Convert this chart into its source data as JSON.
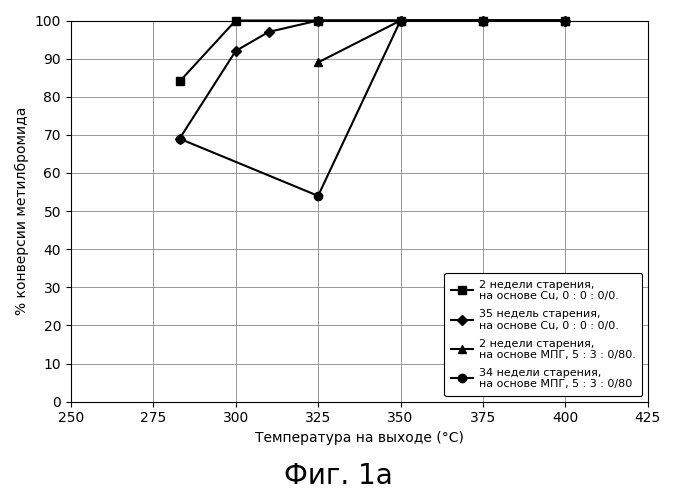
{
  "title": "Фиг. 1а",
  "xlabel": "Температура на выходе (°C)",
  "ylabel": "% конверсии метилбромида",
  "xlim": [
    250,
    425
  ],
  "ylim": [
    0,
    100
  ],
  "xticks": [
    250,
    275,
    300,
    325,
    350,
    375,
    400,
    425
  ],
  "yticks": [
    0,
    10,
    20,
    30,
    40,
    50,
    60,
    70,
    80,
    90,
    100
  ],
  "series": [
    {
      "label": "2 недели старения,\nна основе Cu, 0 : 0 : 0/0.",
      "x": [
        283,
        300,
        325,
        350,
        375,
        400
      ],
      "y": [
        84,
        100,
        100,
        100,
        100,
        100
      ],
      "marker": "s",
      "color": "#000000",
      "markersize": 6,
      "linewidth": 1.5
    },
    {
      "label": "35 недель старения,\nна основе Cu, 0 : 0 : 0/0.",
      "x": [
        283,
        300,
        310,
        325,
        350,
        375,
        400
      ],
      "y": [
        69,
        92,
        97,
        100,
        100,
        100,
        100
      ],
      "marker": "D",
      "color": "#000000",
      "markersize": 5,
      "linewidth": 1.5
    },
    {
      "label": "2 недели старения,\nна основе МПГ, 5 : 3 : 0/80.",
      "x": [
        325,
        350,
        375,
        400
      ],
      "y": [
        89,
        100,
        100,
        100
      ],
      "marker": "^",
      "color": "#000000",
      "markersize": 6,
      "linewidth": 1.5
    },
    {
      "label": "34 недели старения,\nна основе МПГ, 5 : 3 : 0/80",
      "x": [
        283,
        325,
        350,
        375,
        400
      ],
      "y": [
        69,
        54,
        100,
        100,
        100
      ],
      "marker": "o",
      "color": "#000000",
      "markersize": 6,
      "linewidth": 1.5
    }
  ],
  "legend_fontsize": 8,
  "background_color": "#ffffff",
  "fig_title_fontsize": 20,
  "axis_label_fontsize": 10,
  "tick_fontsize": 10
}
